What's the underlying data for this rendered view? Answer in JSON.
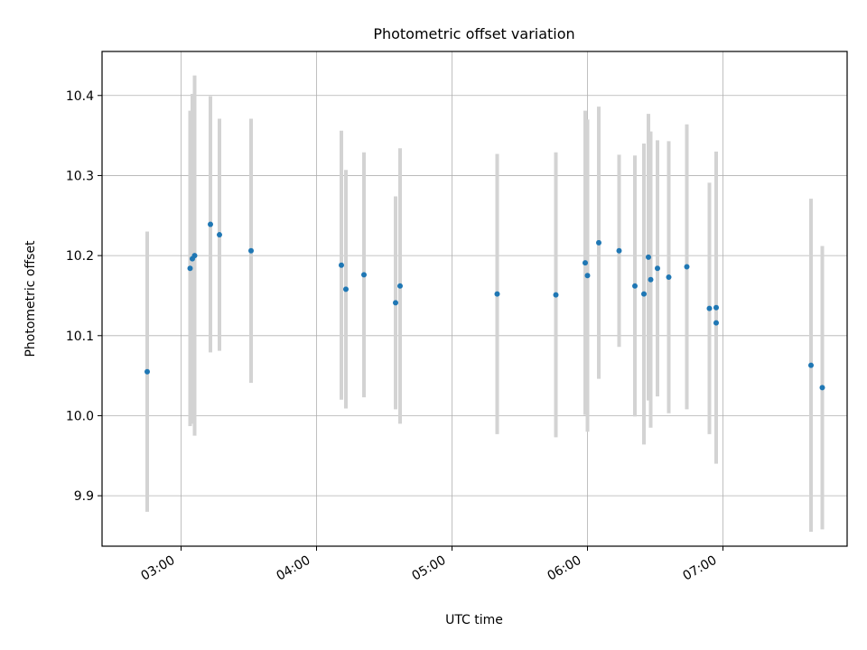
{
  "chart_data": {
    "type": "scatter",
    "title": "Photometric offset variation",
    "xlabel": "UTC time",
    "ylabel": "Photometric offset",
    "x_axis_kind": "time",
    "xlim": [
      "02:25",
      "07:55"
    ],
    "ylim": [
      9.837,
      10.455
    ],
    "grid": true,
    "x_ticks": [
      "03:00",
      "04:00",
      "05:00",
      "06:00",
      "07:00"
    ],
    "y_ticks": [
      9.9,
      10.0,
      10.1,
      10.2,
      10.3,
      10.4
    ],
    "marker_color": "#1f77b4",
    "errorbar_color": "#d3d3d3",
    "series": [
      {
        "points": [
          {
            "t": "02:45",
            "y": 10.055,
            "err": 0.175
          },
          {
            "t": "03:04",
            "y": 10.184,
            "err": 0.197
          },
          {
            "t": "03:05",
            "y": 10.196,
            "err": 0.206
          },
          {
            "t": "03:06",
            "y": 10.2,
            "err": 0.225
          },
          {
            "t": "03:13",
            "y": 10.239,
            "err": 0.16
          },
          {
            "t": "03:17",
            "y": 10.226,
            "err": 0.145
          },
          {
            "t": "03:31",
            "y": 10.206,
            "err": 0.165
          },
          {
            "t": "04:11",
            "y": 10.188,
            "err": 0.168
          },
          {
            "t": "04:13",
            "y": 10.158,
            "err": 0.149
          },
          {
            "t": "04:21",
            "y": 10.176,
            "err": 0.153
          },
          {
            "t": "04:35",
            "y": 10.141,
            "err": 0.133
          },
          {
            "t": "04:37",
            "y": 10.162,
            "err": 0.172
          },
          {
            "t": "05:20",
            "y": 10.152,
            "err": 0.175
          },
          {
            "t": "05:46",
            "y": 10.151,
            "err": 0.178
          },
          {
            "t": "05:59",
            "y": 10.191,
            "err": 0.19
          },
          {
            "t": "06:00",
            "y": 10.175,
            "err": 0.195
          },
          {
            "t": "06:05",
            "y": 10.216,
            "err": 0.17
          },
          {
            "t": "06:14",
            "y": 10.206,
            "err": 0.12
          },
          {
            "t": "06:21",
            "y": 10.162,
            "err": 0.163
          },
          {
            "t": "06:25",
            "y": 10.152,
            "err": 0.188
          },
          {
            "t": "06:27",
            "y": 10.198,
            "err": 0.179
          },
          {
            "t": "06:28",
            "y": 10.17,
            "err": 0.185
          },
          {
            "t": "06:31",
            "y": 10.184,
            "err": 0.16
          },
          {
            "t": "06:36",
            "y": 10.173,
            "err": 0.17
          },
          {
            "t": "06:44",
            "y": 10.186,
            "err": 0.178
          },
          {
            "t": "06:54",
            "y": 10.134,
            "err": 0.157
          },
          {
            "t": "06:57",
            "y": 10.135,
            "err": 0.195
          },
          {
            "t": "06:57",
            "y": 10.116,
            "err": 0.175
          },
          {
            "t": "07:39",
            "y": 10.063,
            "err": 0.208
          },
          {
            "t": "07:44",
            "y": 10.035,
            "err": 0.177
          }
        ]
      }
    ]
  }
}
